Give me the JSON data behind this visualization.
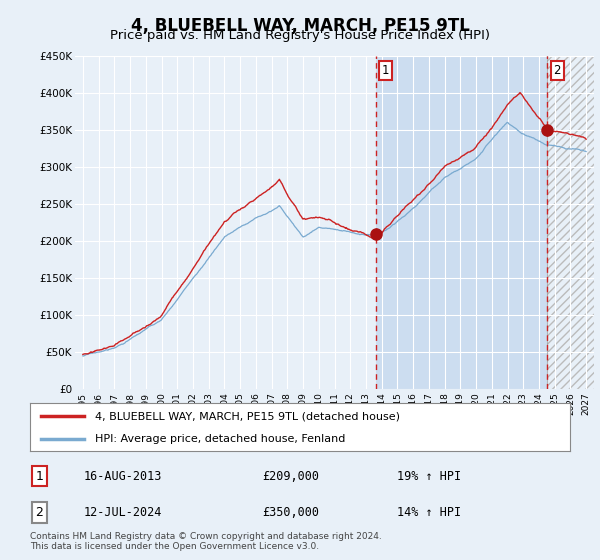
{
  "title": "4, BLUEBELL WAY, MARCH, PE15 9TL",
  "subtitle": "Price paid vs. HM Land Registry's House Price Index (HPI)",
  "title_fontsize": 12,
  "subtitle_fontsize": 9.5,
  "ylim": [
    0,
    450000
  ],
  "yticks": [
    0,
    50000,
    100000,
    150000,
    200000,
    250000,
    300000,
    350000,
    400000,
    450000
  ],
  "ytick_labels": [
    "£0",
    "£50K",
    "£100K",
    "£150K",
    "£200K",
    "£250K",
    "£300K",
    "£350K",
    "£400K",
    "£450K"
  ],
  "background_color": "#e8f0f8",
  "plot_bg_color": "#e8f0f8",
  "shade_color": "#ccddf0",
  "hatch_color": "#cccccc",
  "grid_color": "#ffffff",
  "hpi_color": "#7aaad0",
  "price_color": "#cc2222",
  "vline1_color": "#cc2222",
  "vline2_color": "#cc2222",
  "vline2_solid_color": "#999999",
  "marker_color": "#aa1111",
  "sale1_date_x": 2013.62,
  "sale1_price": 209000,
  "sale2_date_x": 2024.53,
  "sale2_price": 350000,
  "legend_label1": "4, BLUEBELL WAY, MARCH, PE15 9TL (detached house)",
  "legend_label2": "HPI: Average price, detached house, Fenland",
  "table_row1": [
    "1",
    "16-AUG-2013",
    "£209,000",
    "19% ↑ HPI"
  ],
  "table_row2": [
    "2",
    "12-JUL-2024",
    "£350,000",
    "14% ↑ HPI"
  ],
  "footer": "Contains HM Land Registry data © Crown copyright and database right 2024.\nThis data is licensed under the Open Government Licence v3.0.",
  "xtick_years": [
    1995,
    1996,
    1997,
    1998,
    1999,
    2000,
    2001,
    2002,
    2003,
    2004,
    2005,
    2006,
    2007,
    2008,
    2009,
    2010,
    2011,
    2012,
    2013,
    2014,
    2015,
    2016,
    2017,
    2018,
    2019,
    2020,
    2021,
    2022,
    2023,
    2024,
    2025,
    2026,
    2027
  ],
  "xmin": 1994.5,
  "xmax": 2027.5
}
